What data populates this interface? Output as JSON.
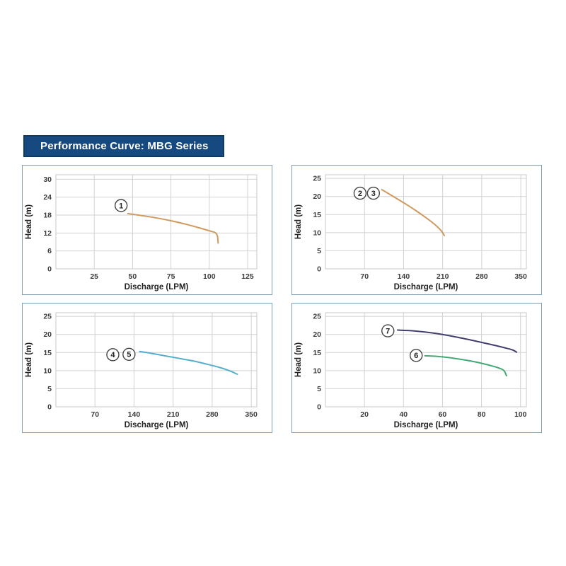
{
  "header": {
    "title": "Performance Curve: MBG Series",
    "bg": "#15497f",
    "border": "#0e3a66",
    "text_color": "#ffffff"
  },
  "style": {
    "grid_color": "#d2d2d2",
    "plot_border_color": "#c9c9c9",
    "tick_color": "#3d3d3d",
    "axis_label_color": "#222222",
    "marker_circle_stroke": "#444444",
    "marker_text_color": "#222222"
  },
  "chart_data": [
    {
      "type": "line",
      "position": "top-left",
      "xlabel": "Discharge (LPM)",
      "ylabel": "Head (m)",
      "xlim": [
        0,
        131
      ],
      "ylim": [
        0,
        31.5
      ],
      "xticks": [
        25,
        50,
        75,
        100,
        125
      ],
      "yticks": [
        0,
        6,
        12,
        18,
        24,
        30
      ],
      "grid": true,
      "series": [
        {
          "name": "curve-1",
          "color": "#d09a5e",
          "points": [
            [
              47,
              18.5
            ],
            [
              55,
              17.9
            ],
            [
              65,
              17.1
            ],
            [
              75,
              16.1
            ],
            [
              85,
              14.9
            ],
            [
              95,
              13.5
            ],
            [
              101,
              12.6
            ],
            [
              104,
              12.1
            ],
            [
              105.3,
              11.0
            ],
            [
              105.8,
              8.6
            ]
          ]
        }
      ],
      "markers": [
        {
          "text": "1",
          "x": 42.5,
          "y": 21.2
        }
      ]
    },
    {
      "type": "line",
      "position": "top-right",
      "xlabel": "Discharge (LPM)",
      "ylabel": "Head (m)",
      "xlim": [
        0,
        360
      ],
      "ylim": [
        0,
        26
      ],
      "xticks": [
        70,
        140,
        210,
        280,
        350
      ],
      "yticks": [
        0,
        5,
        10,
        15,
        20,
        25
      ],
      "grid": true,
      "series": [
        {
          "name": "curve-2-3",
          "color": "#d09a5e",
          "points": [
            [
              101,
              21.9
            ],
            [
              115,
              20.6
            ],
            [
              130,
              19.2
            ],
            [
              145,
              17.8
            ],
            [
              160,
              16.3
            ],
            [
              175,
              14.7
            ],
            [
              190,
              13.0
            ],
            [
              200,
              11.7
            ],
            [
              208,
              10.4
            ],
            [
              213,
              9.2
            ]
          ]
        }
      ],
      "markers": [
        {
          "text": "2",
          "x": 62,
          "y": 20.9
        },
        {
          "text": "3",
          "x": 86,
          "y": 20.9
        }
      ]
    },
    {
      "type": "line",
      "position": "bottom-left",
      "xlabel": "Discharge (LPM)",
      "ylabel": "Head (m)",
      "xlim": [
        0,
        360
      ],
      "ylim": [
        0,
        26
      ],
      "xticks": [
        70,
        140,
        210,
        280,
        350
      ],
      "yticks": [
        0,
        5,
        10,
        15,
        20,
        25
      ],
      "grid": true,
      "series": [
        {
          "name": "curve-4-5",
          "color": "#55aecd",
          "points": [
            [
              150,
              15.3
            ],
            [
              170,
              14.8
            ],
            [
              195,
              14.1
            ],
            [
              220,
              13.4
            ],
            [
              245,
              12.7
            ],
            [
              270,
              11.8
            ],
            [
              295,
              10.8
            ],
            [
              312,
              9.9
            ],
            [
              325,
              9.0
            ]
          ]
        }
      ],
      "markers": [
        {
          "text": "4",
          "x": 102,
          "y": 14.4
        },
        {
          "text": "5",
          "x": 131,
          "y": 14.5
        }
      ]
    },
    {
      "type": "line",
      "position": "bottom-right",
      "xlabel": "Discharge (LPM)",
      "ylabel": "Head (m)",
      "xlim": [
        0,
        103
      ],
      "ylim": [
        0,
        26
      ],
      "xticks": [
        20,
        40,
        60,
        80,
        100
      ],
      "yticks": [
        0,
        5,
        10,
        15,
        20,
        25
      ],
      "grid": true,
      "series": [
        {
          "name": "curve-7",
          "color": "#423f6f",
          "points": [
            [
              37,
              21.2
            ],
            [
              45,
              21.0
            ],
            [
              55,
              20.4
            ],
            [
              65,
              19.5
            ],
            [
              75,
              18.4
            ],
            [
              85,
              17.2
            ],
            [
              92,
              16.3
            ],
            [
              96,
              15.7
            ],
            [
              98,
              15.1
            ]
          ]
        },
        {
          "name": "curve-6",
          "color": "#43a873",
          "points": [
            [
              51,
              14.1
            ],
            [
              58,
              13.9
            ],
            [
              66,
              13.4
            ],
            [
              74,
              12.7
            ],
            [
              81,
              11.9
            ],
            [
              86,
              11.2
            ],
            [
              89.5,
              10.6
            ],
            [
              91.5,
              10.0
            ],
            [
              92.8,
              8.6
            ]
          ]
        }
      ],
      "markers": [
        {
          "text": "7",
          "x": 32,
          "y": 21.0
        },
        {
          "text": "6",
          "x": 46.5,
          "y": 14.2
        }
      ]
    }
  ]
}
